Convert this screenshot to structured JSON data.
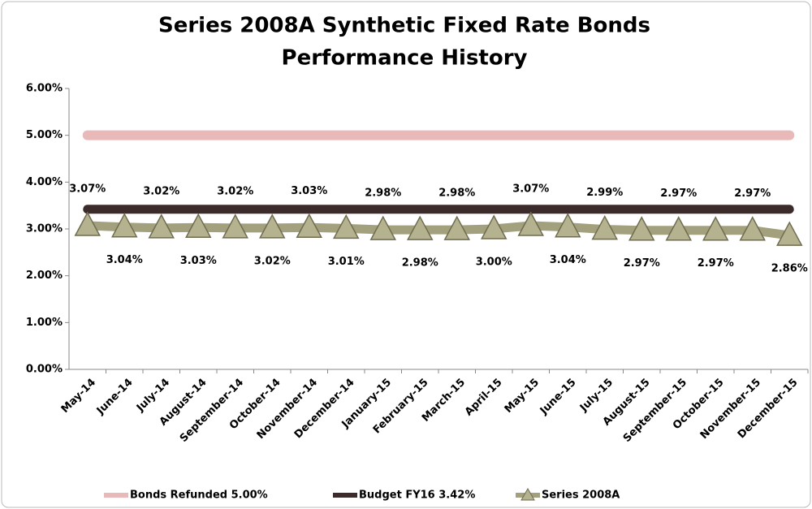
{
  "chart_data": {
    "type": "line",
    "title": [
      "Series 2008A Synthetic Fixed Rate Bonds",
      "Performance History"
    ],
    "categories": [
      "May-14",
      "June-14",
      "July-14",
      "August-14",
      "September-14",
      "October-14",
      "November-14",
      "December-14",
      "January-15",
      "February-15",
      "March-15",
      "April-15",
      "May-15",
      "June-15",
      "July-15",
      "August-15",
      "September-15",
      "October-15",
      "November-15",
      "December-15"
    ],
    "series": [
      {
        "name": "Bonds Refunded 5.00%",
        "color": "#e9b9b9",
        "values": [
          5,
          5,
          5,
          5,
          5,
          5,
          5,
          5,
          5,
          5,
          5,
          5,
          5,
          5,
          5,
          5,
          5,
          5,
          5,
          5
        ]
      },
      {
        "name": "Budget FY16 3.42%",
        "color": "#3b2b2b",
        "values": [
          3.42,
          3.42,
          3.42,
          3.42,
          3.42,
          3.42,
          3.42,
          3.42,
          3.42,
          3.42,
          3.42,
          3.42,
          3.42,
          3.42,
          3.42,
          3.42,
          3.42,
          3.42,
          3.42,
          3.42
        ]
      },
      {
        "name": "Series 2008A",
        "color": "#a3a07e",
        "marker": "triangle",
        "values": [
          3.07,
          3.04,
          3.02,
          3.03,
          3.02,
          3.02,
          3.03,
          3.01,
          2.98,
          2.98,
          2.98,
          3.0,
          3.07,
          3.04,
          2.99,
          2.97,
          2.97,
          2.97,
          2.97,
          2.86
        ],
        "value_labels": [
          "3.07%",
          "3.04%",
          "3.02%",
          "3.03%",
          "3.02%",
          "3.02%",
          "3.03%",
          "3.01%",
          "2.98%",
          "2.98%",
          "2.98%",
          "3.00%",
          "3.07%",
          "3.04%",
          "2.99%",
          "2.97%",
          "2.97%",
          "2.97%",
          "2.97%",
          "2.86%"
        ]
      }
    ],
    "ylim": [
      0,
      6
    ],
    "yticks": [
      {
        "value": 0,
        "label": "0.00%"
      },
      {
        "value": 1,
        "label": "1.00%"
      },
      {
        "value": 2,
        "label": "2.00%"
      },
      {
        "value": 3,
        "label": "3.00%"
      },
      {
        "value": 4,
        "label": "4.00%"
      },
      {
        "value": 5,
        "label": "5.00%"
      },
      {
        "value": 6,
        "label": "6.00%"
      }
    ],
    "legend": "bottom"
  }
}
